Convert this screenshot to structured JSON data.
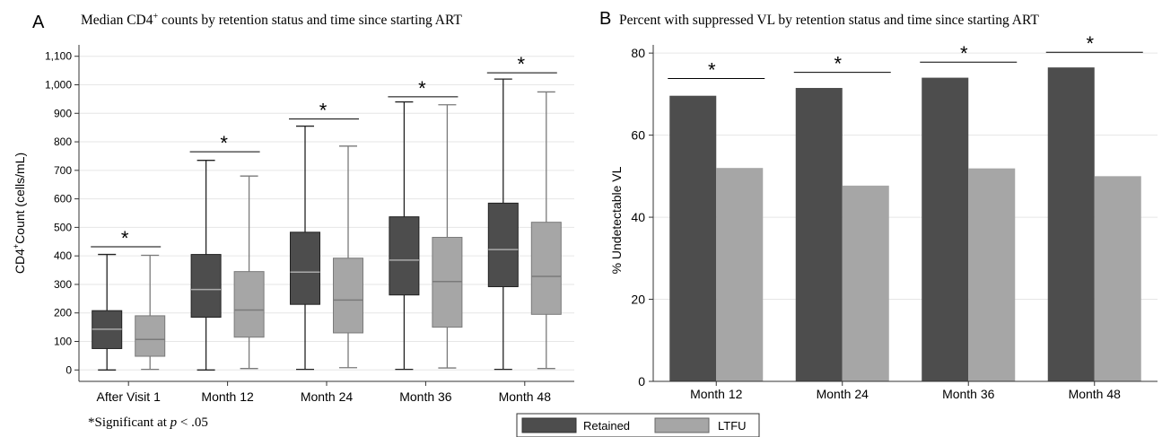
{
  "panels": [
    {
      "letter": "A",
      "title_main": "Median CD4",
      "title_sup": "+",
      "title_rest": " counts by retention status and time since starting ART"
    },
    {
      "letter": "B",
      "title": "Percent with suppressed VL by retention status and time since starting ART"
    }
  ],
  "footnote": {
    "prefix": "*Significant at ",
    "p": "p",
    "suffix": " < .05"
  },
  "legend": {
    "position": "bottom-center",
    "items": [
      "Retained",
      "LTFU"
    ]
  },
  "colors": {
    "retained": "#4d4d4d",
    "ltfu": "#a6a6a6",
    "grid": "#e6e6e6",
    "axis": "#333333"
  },
  "chart_data": [
    {
      "type": "box",
      "ylabel_main": "CD4",
      "ylabel_sup": "+",
      "ylabel_rest": "Count (cells/mL)",
      "xlabel": "",
      "ylim": [
        -40,
        1140
      ],
      "yticks": [
        0,
        100,
        200,
        300,
        400,
        500,
        600,
        700,
        800,
        900,
        1000,
        1100
      ],
      "ytick_labels": [
        "0",
        "100",
        "200",
        "300",
        "400",
        "500",
        "600",
        "700",
        "800",
        "900",
        "1,000",
        "1,100"
      ],
      "grid": true,
      "categories": [
        "After Visit 1",
        "Month 12",
        "Month 24",
        "Month 36",
        "Month 48"
      ],
      "significance_marker": "*",
      "series": [
        {
          "name": "Retained",
          "boxes": [
            {
              "min": 0,
              "q1": 75,
              "median": 143,
              "q3": 208,
              "max": 405
            },
            {
              "min": 0,
              "q1": 185,
              "median": 282,
              "q3": 405,
              "max": 735
            },
            {
              "min": 2,
              "q1": 230,
              "median": 343,
              "q3": 483,
              "max": 855
            },
            {
              "min": 2,
              "q1": 263,
              "median": 385,
              "q3": 537,
              "max": 940
            },
            {
              "min": 2,
              "q1": 292,
              "median": 422,
              "q3": 585,
              "max": 1020
            }
          ]
        },
        {
          "name": "LTFU",
          "boxes": [
            {
              "min": 2,
              "q1": 48,
              "median": 107,
              "q3": 190,
              "max": 402
            },
            {
              "min": 5,
              "q1": 115,
              "median": 210,
              "q3": 345,
              "max": 680
            },
            {
              "min": 8,
              "q1": 130,
              "median": 245,
              "q3": 392,
              "max": 785
            },
            {
              "min": 7,
              "q1": 150,
              "median": 310,
              "q3": 465,
              "max": 930
            },
            {
              "min": 5,
              "q1": 195,
              "median": 328,
              "q3": 518,
              "max": 975
            }
          ]
        }
      ],
      "significance": [
        {
          "y": 432
        },
        {
          "y": 765
        },
        {
          "y": 880
        },
        {
          "y": 958
        },
        {
          "y": 1042
        }
      ]
    },
    {
      "type": "bar",
      "ylabel": "% Undetectable VL",
      "xlabel": "",
      "ylim": [
        0,
        82
      ],
      "yticks": [
        0,
        20,
        40,
        60,
        80
      ],
      "ytick_labels": [
        "0",
        "20",
        "40",
        "60",
        "80"
      ],
      "grid": true,
      "categories": [
        "Month 12",
        "Month 24",
        "Month 36",
        "Month 48"
      ],
      "significance_marker": "*",
      "series": [
        {
          "name": "Retained",
          "values": [
            69.6,
            71.5,
            74.0,
            76.5
          ]
        },
        {
          "name": "LTFU",
          "values": [
            52.0,
            47.7,
            51.9,
            50.0
          ]
        }
      ],
      "significance": [
        {
          "y": 73.8
        },
        {
          "y": 75.3
        },
        {
          "y": 77.8
        },
        {
          "y": 80.2
        }
      ]
    }
  ]
}
